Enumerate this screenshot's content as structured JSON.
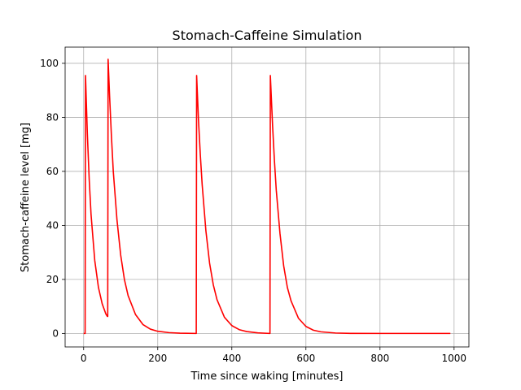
{
  "chart_data": {
    "type": "line",
    "title": "Stomach-Caffeine Simulation",
    "xlabel": "Time since waking [minutes]",
    "ylabel": "Stomach-caffeine level [mg]",
    "xlim": [
      -50,
      1040
    ],
    "ylim": [
      -5,
      106
    ],
    "xticks": [
      0,
      200,
      400,
      600,
      800,
      1000
    ],
    "yticks": [
      0,
      20,
      40,
      60,
      80,
      100
    ],
    "grid": true,
    "colors": {
      "series": "#ff0000",
      "grid": "#b0b0b0",
      "axes": "#000000"
    },
    "series": [
      {
        "color": "#ff0000",
        "points": [
          [
            0,
            0
          ],
          [
            4,
            0
          ],
          [
            5,
            95.5
          ],
          [
            10,
            74
          ],
          [
            15,
            57
          ],
          [
            20,
            44
          ],
          [
            30,
            27
          ],
          [
            40,
            17
          ],
          [
            50,
            11
          ],
          [
            60,
            7.2
          ],
          [
            64,
            6.3
          ],
          [
            65,
            6.3
          ],
          [
            66,
            101.5
          ],
          [
            70,
            88
          ],
          [
            75,
            73
          ],
          [
            80,
            60
          ],
          [
            90,
            42
          ],
          [
            100,
            29
          ],
          [
            110,
            20
          ],
          [
            120,
            14
          ],
          [
            140,
            7
          ],
          [
            160,
            3.3
          ],
          [
            180,
            1.6
          ],
          [
            200,
            0.8
          ],
          [
            230,
            0.3
          ],
          [
            260,
            0.1
          ],
          [
            303,
            0
          ],
          [
            304,
            0
          ],
          [
            305,
            95.5
          ],
          [
            310,
            79
          ],
          [
            315,
            66
          ],
          [
            320,
            55
          ],
          [
            330,
            38
          ],
          [
            340,
            26
          ],
          [
            350,
            18
          ],
          [
            360,
            12.5
          ],
          [
            380,
            6
          ],
          [
            400,
            2.9
          ],
          [
            420,
            1.4
          ],
          [
            440,
            0.7
          ],
          [
            470,
            0.2
          ],
          [
            502,
            0
          ],
          [
            503,
            0
          ],
          [
            504,
            95.5
          ],
          [
            510,
            77
          ],
          [
            515,
            64
          ],
          [
            520,
            53
          ],
          [
            530,
            37
          ],
          [
            540,
            25
          ],
          [
            550,
            17
          ],
          [
            560,
            12
          ],
          [
            580,
            5.6
          ],
          [
            600,
            2.6
          ],
          [
            620,
            1.2
          ],
          [
            640,
            0.6
          ],
          [
            680,
            0.15
          ],
          [
            720,
            0.03
          ],
          [
            800,
            0
          ],
          [
            990,
            0
          ]
        ]
      }
    ]
  }
}
